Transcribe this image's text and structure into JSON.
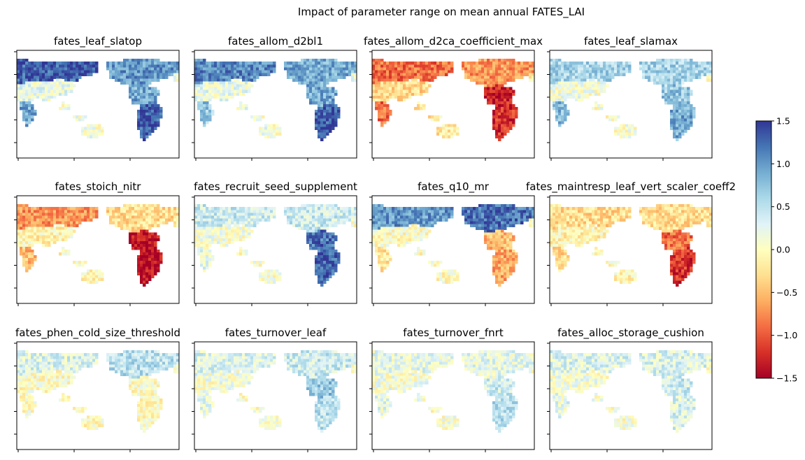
{
  "figure": {
    "title": "Impact of parameter range on mean annual FATES_LAI"
  },
  "colors": {
    "scale": [
      "#a50026",
      "#d73027",
      "#f46d43",
      "#fdae61",
      "#fee090",
      "#ffffbf",
      "#e0f3f8",
      "#abd9e9",
      "#74add1",
      "#4575b4",
      "#313695"
    ]
  },
  "chart_data": {
    "type": "heatmap",
    "colormap": "RdYlBu",
    "colorbar": {
      "vmin": -1.5,
      "vmax": 1.5,
      "ticks": [
        1.5,
        1.0,
        0.5,
        0.0,
        -0.5,
        -1.0,
        -1.5
      ],
      "tick_labels": [
        "1.5",
        "1.0",
        "0.5",
        "0.0",
        "−0.5",
        "−1.0",
        "−1.5"
      ]
    },
    "panels": [
      {
        "title": "fates_leaf_slatop",
        "pattern": [
          1.3,
          1.0,
          0.2,
          0.9,
          1.3,
          0.9
        ]
      },
      {
        "title": "fates_allom_d2bl1",
        "pattern": [
          1.1,
          0.9,
          0.2,
          0.9,
          1.3,
          0.7
        ]
      },
      {
        "title": "fates_allom_d2ca_coefficient_max",
        "pattern": [
          -0.9,
          -0.7,
          -0.3,
          -1.3,
          -1.2,
          -0.9
        ]
      },
      {
        "title": "fates_leaf_slamax",
        "pattern": [
          0.6,
          0.6,
          0.1,
          0.7,
          0.9,
          0.8
        ]
      },
      {
        "title": "fates_stoich_nitr",
        "pattern": [
          -0.7,
          -0.3,
          -0.1,
          -1.4,
          -1.4,
          -0.5
        ]
      },
      {
        "title": "fates_recruit_seed_supplement",
        "pattern": [
          0.4,
          0.4,
          0.1,
          1.2,
          1.3,
          0.2
        ]
      },
      {
        "title": "fates_q10_mr",
        "pattern": [
          1.0,
          1.2,
          0.0,
          -0.5,
          -0.6,
          -0.2
        ]
      },
      {
        "title": "fates_maintresp_leaf_vert_scaler_coeff2",
        "pattern": [
          -0.3,
          -0.3,
          -0.1,
          -0.9,
          -1.2,
          -0.3
        ]
      },
      {
        "title": "fates_phen_cold_size_threshold",
        "pattern": [
          0.3,
          0.5,
          0.0,
          0.0,
          0.0,
          0.0
        ]
      },
      {
        "title": "fates_turnover_leaf",
        "pattern": [
          0.3,
          0.4,
          0.1,
          0.7,
          0.5,
          0.2
        ]
      },
      {
        "title": "fates_turnover_fnrt",
        "pattern": [
          0.2,
          0.2,
          0.1,
          0.4,
          0.5,
          0.2
        ]
      },
      {
        "title": "fates_alloc_storage_cushion",
        "pattern": [
          0.3,
          0.3,
          0.1,
          0.4,
          0.3,
          0.2
        ]
      }
    ]
  }
}
